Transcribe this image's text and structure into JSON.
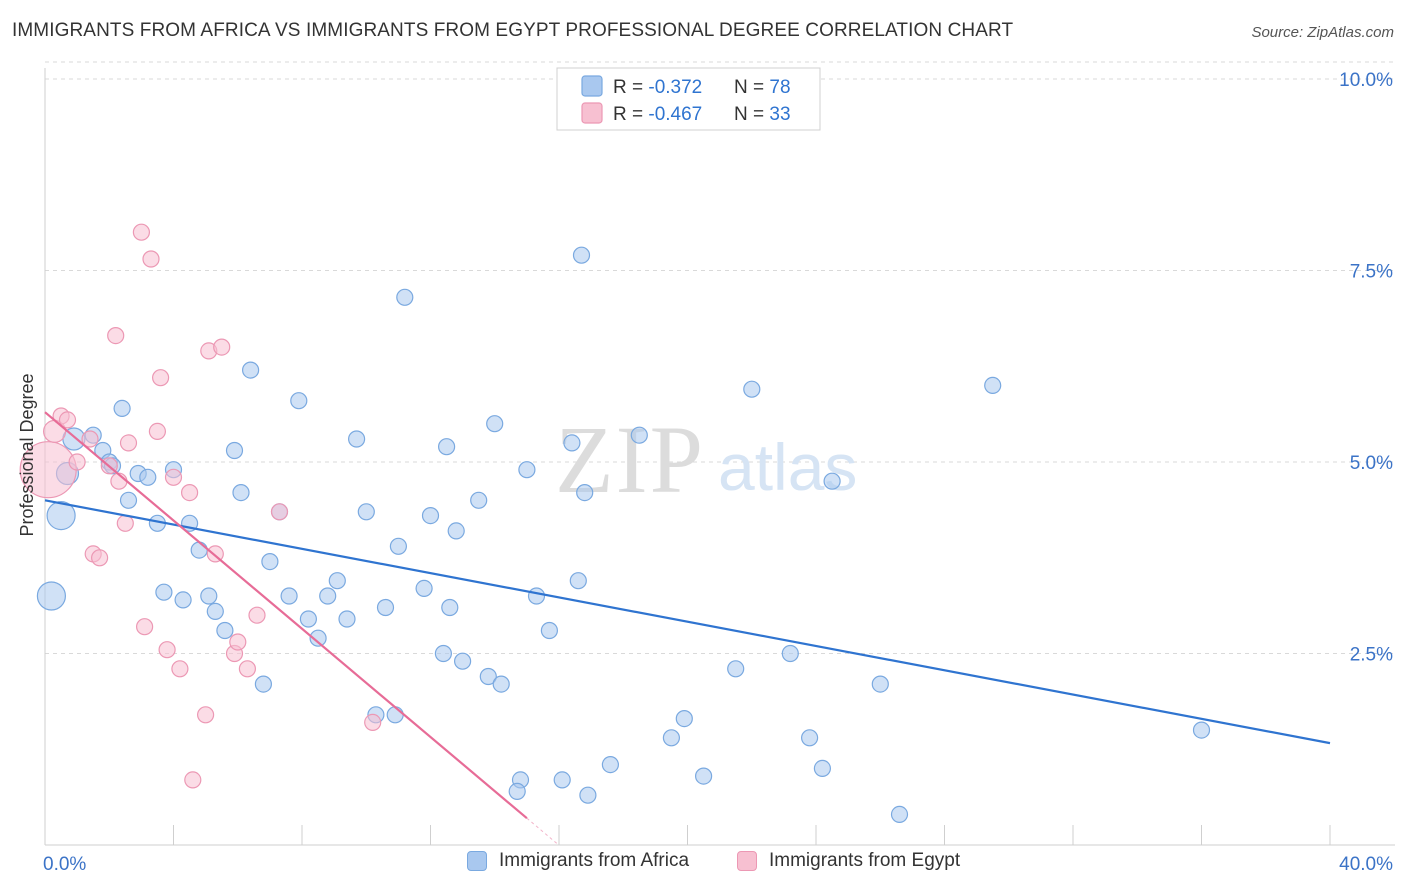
{
  "header": {
    "title": "IMMIGRANTS FROM AFRICA VS IMMIGRANTS FROM EGYPT PROFESSIONAL DEGREE CORRELATION CHART",
    "source": "Source: ZipAtlas.com"
  },
  "colors": {
    "africa_fill": "#a9c8ef",
    "africa_stroke": "#7aa9e0",
    "africa_line": "#2f74d0",
    "egypt_fill": "#f7c0d1",
    "egypt_stroke": "#ec98b4",
    "egypt_line": "#e76c97",
    "tick_label": "#3b73c7",
    "grid": "#d9d9d9"
  },
  "legend_stats": {
    "africa": {
      "r_label": "R = ",
      "r_value": "-0.372",
      "n_label": "N = ",
      "n_value": "78"
    },
    "egypt": {
      "r_label": "R = ",
      "r_value": "-0.467",
      "n_label": "N = ",
      "n_value": "33"
    }
  },
  "legend_bottom": {
    "africa": "Immigrants from Africa",
    "egypt": "Immigrants from Egypt"
  },
  "watermark": {
    "zip": "ZIP",
    "atlas": "atlas"
  },
  "chart_data": {
    "type": "scatter",
    "title": "IMMIGRANTS FROM AFRICA VS IMMIGRANTS FROM EGYPT PROFESSIONAL DEGREE CORRELATION CHART",
    "xlabel": "",
    "ylabel": "Professional Degree",
    "xlim": [
      0,
      40
    ],
    "ylim": [
      0,
      10.5
    ],
    "x_tick_labels": [
      "0.0%",
      "40.0%"
    ],
    "y_ticks": [
      2.5,
      5.0,
      7.5,
      10.0
    ],
    "y_tick_labels": [
      "2.5%",
      "5.0%",
      "7.5%",
      "10.0%"
    ],
    "grid": true,
    "legend_position": "top-center",
    "series": [
      {
        "name": "Immigrants from Africa",
        "r": -0.372,
        "n": 78,
        "trend": {
          "x": [
            0,
            40
          ],
          "y": [
            4.5,
            1.33
          ]
        },
        "points": [
          [
            0.2,
            3.25,
            3
          ],
          [
            0.5,
            4.3,
            3
          ],
          [
            0.7,
            4.85,
            2
          ],
          [
            0.9,
            5.3,
            2
          ],
          [
            1.5,
            5.35,
            1
          ],
          [
            1.8,
            5.15,
            1
          ],
          [
            2.0,
            5.0,
            1
          ],
          [
            2.1,
            4.95,
            1
          ],
          [
            2.4,
            5.7,
            1
          ],
          [
            2.6,
            4.5,
            1
          ],
          [
            2.9,
            4.85,
            1
          ],
          [
            3.2,
            4.8,
            1
          ],
          [
            3.5,
            4.2,
            1
          ],
          [
            3.7,
            3.3,
            1
          ],
          [
            4.0,
            4.9,
            1
          ],
          [
            4.3,
            3.2,
            1
          ],
          [
            4.5,
            4.2,
            1
          ],
          [
            4.8,
            3.85,
            1
          ],
          [
            5.1,
            3.25,
            1
          ],
          [
            5.3,
            3.05,
            1
          ],
          [
            5.6,
            2.8,
            1
          ],
          [
            5.9,
            5.15,
            1
          ],
          [
            6.1,
            4.6,
            1
          ],
          [
            6.4,
            6.2,
            1
          ],
          [
            6.8,
            2.1,
            1
          ],
          [
            7.0,
            3.7,
            1
          ],
          [
            7.3,
            4.35,
            1
          ],
          [
            7.6,
            3.25,
            1
          ],
          [
            7.9,
            5.8,
            1
          ],
          [
            8.2,
            2.95,
            1
          ],
          [
            8.5,
            2.7,
            1
          ],
          [
            8.8,
            3.25,
            1
          ],
          [
            9.1,
            3.45,
            1
          ],
          [
            9.4,
            2.95,
            1
          ],
          [
            9.7,
            5.3,
            1
          ],
          [
            10.0,
            4.35,
            1
          ],
          [
            10.3,
            1.7,
            1
          ],
          [
            10.6,
            3.1,
            1
          ],
          [
            10.9,
            1.7,
            1
          ],
          [
            11.0,
            3.9,
            1
          ],
          [
            11.2,
            7.15,
            1
          ],
          [
            11.8,
            3.35,
            1
          ],
          [
            12.0,
            4.3,
            1
          ],
          [
            12.4,
            2.5,
            1
          ],
          [
            12.6,
            3.1,
            1
          ],
          [
            12.5,
            5.2,
            1
          ],
          [
            12.8,
            4.1,
            1
          ],
          [
            13.0,
            2.4,
            1
          ],
          [
            13.5,
            4.5,
            1
          ],
          [
            13.8,
            2.2,
            1
          ],
          [
            14.0,
            5.5,
            1
          ],
          [
            14.2,
            2.1,
            1
          ],
          [
            14.8,
            0.85,
            1
          ],
          [
            14.7,
            0.7,
            1
          ],
          [
            15.0,
            4.9,
            1
          ],
          [
            15.3,
            3.25,
            1
          ],
          [
            15.7,
            2.8,
            1
          ],
          [
            16.1,
            0.85,
            1
          ],
          [
            16.4,
            5.25,
            1
          ],
          [
            16.6,
            3.45,
            1
          ],
          [
            16.8,
            4.6,
            1
          ],
          [
            16.7,
            7.7,
            1
          ],
          [
            16.9,
            0.65,
            1
          ],
          [
            17.6,
            1.05,
            1
          ],
          [
            18.5,
            5.35,
            1
          ],
          [
            19.5,
            1.4,
            1
          ],
          [
            19.9,
            1.65,
            1
          ],
          [
            20.5,
            0.9,
            1
          ],
          [
            21.5,
            2.3,
            1
          ],
          [
            22.0,
            5.95,
            1
          ],
          [
            23.2,
            2.5,
            1
          ],
          [
            23.8,
            1.4,
            1
          ],
          [
            24.2,
            1.0,
            1
          ],
          [
            24.5,
            4.75,
            1
          ],
          [
            26.0,
            2.1,
            1
          ],
          [
            26.6,
            0.4,
            1
          ],
          [
            29.5,
            6.0,
            1
          ],
          [
            36.0,
            1.5,
            1
          ]
        ]
      },
      {
        "name": "Immigrants from Egypt",
        "r": -0.467,
        "n": 33,
        "trend": {
          "x": [
            0,
            15.0
          ],
          "y": [
            5.65,
            0.35
          ]
        },
        "points": [
          [
            0.1,
            4.9,
            4
          ],
          [
            0.3,
            5.4,
            2
          ],
          [
            0.5,
            5.6,
            1
          ],
          [
            0.7,
            5.55,
            1
          ],
          [
            1.0,
            5.0,
            1
          ],
          [
            1.4,
            5.3,
            1
          ],
          [
            1.5,
            3.8,
            1
          ],
          [
            1.7,
            3.75,
            1
          ],
          [
            2.0,
            4.95,
            1
          ],
          [
            2.2,
            6.65,
            1
          ],
          [
            2.3,
            4.75,
            1
          ],
          [
            2.5,
            4.2,
            1
          ],
          [
            2.6,
            5.25,
            1
          ],
          [
            3.0,
            8.0,
            1
          ],
          [
            3.1,
            2.85,
            1
          ],
          [
            3.3,
            7.65,
            1
          ],
          [
            3.5,
            5.4,
            1
          ],
          [
            3.6,
            6.1,
            1
          ],
          [
            3.8,
            2.55,
            1
          ],
          [
            4.2,
            2.3,
            1
          ],
          [
            4.5,
            4.6,
            1
          ],
          [
            4.6,
            0.85,
            1
          ],
          [
            5.0,
            1.7,
            1
          ],
          [
            5.1,
            6.45,
            1
          ],
          [
            5.3,
            3.8,
            1
          ],
          [
            5.5,
            6.5,
            1
          ],
          [
            5.9,
            2.5,
            1
          ],
          [
            6.0,
            2.65,
            1
          ],
          [
            6.3,
            2.3,
            1
          ],
          [
            6.6,
            3.0,
            1
          ],
          [
            7.3,
            4.35,
            1
          ],
          [
            10.2,
            1.6,
            1
          ],
          [
            4.0,
            4.8,
            1
          ]
        ]
      }
    ]
  }
}
